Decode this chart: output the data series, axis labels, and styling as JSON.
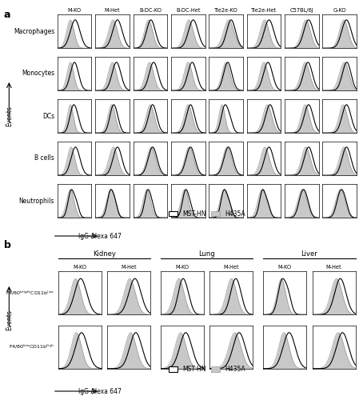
{
  "panel_a_cols": [
    "M-KO",
    "M-Het",
    "B-DC-KO",
    "B-DC-Het",
    "Tie2e-KO",
    "Tie2e-Het",
    "C57BL/6J",
    "G-KO"
  ],
  "panel_a_rows": [
    "Macrophages",
    "Monocytes",
    "DCs",
    "B cells",
    "Neutrophils"
  ],
  "panel_b_organs": [
    "Kidney",
    "Lung",
    "Liver"
  ],
  "panel_b_sub_cols": [
    "M-KO",
    "M-Het"
  ],
  "panel_b_rows": [
    "F4/80$^{bright}$CD11b$^{low}$",
    "F4/80$^{low}$CD11b$^{high}$"
  ],
  "bg_color": "#ffffff",
  "hist_fill_color": "#c8c8c8",
  "hist_edge_color": "#888888",
  "outline_color": "#000000",
  "panel_a_label": "a",
  "panel_b_label": "b",
  "legend_mst": "MST-HN",
  "legend_h435": "H435A",
  "xlabel": "IgG-Alexa 647",
  "ylabel": "Events"
}
